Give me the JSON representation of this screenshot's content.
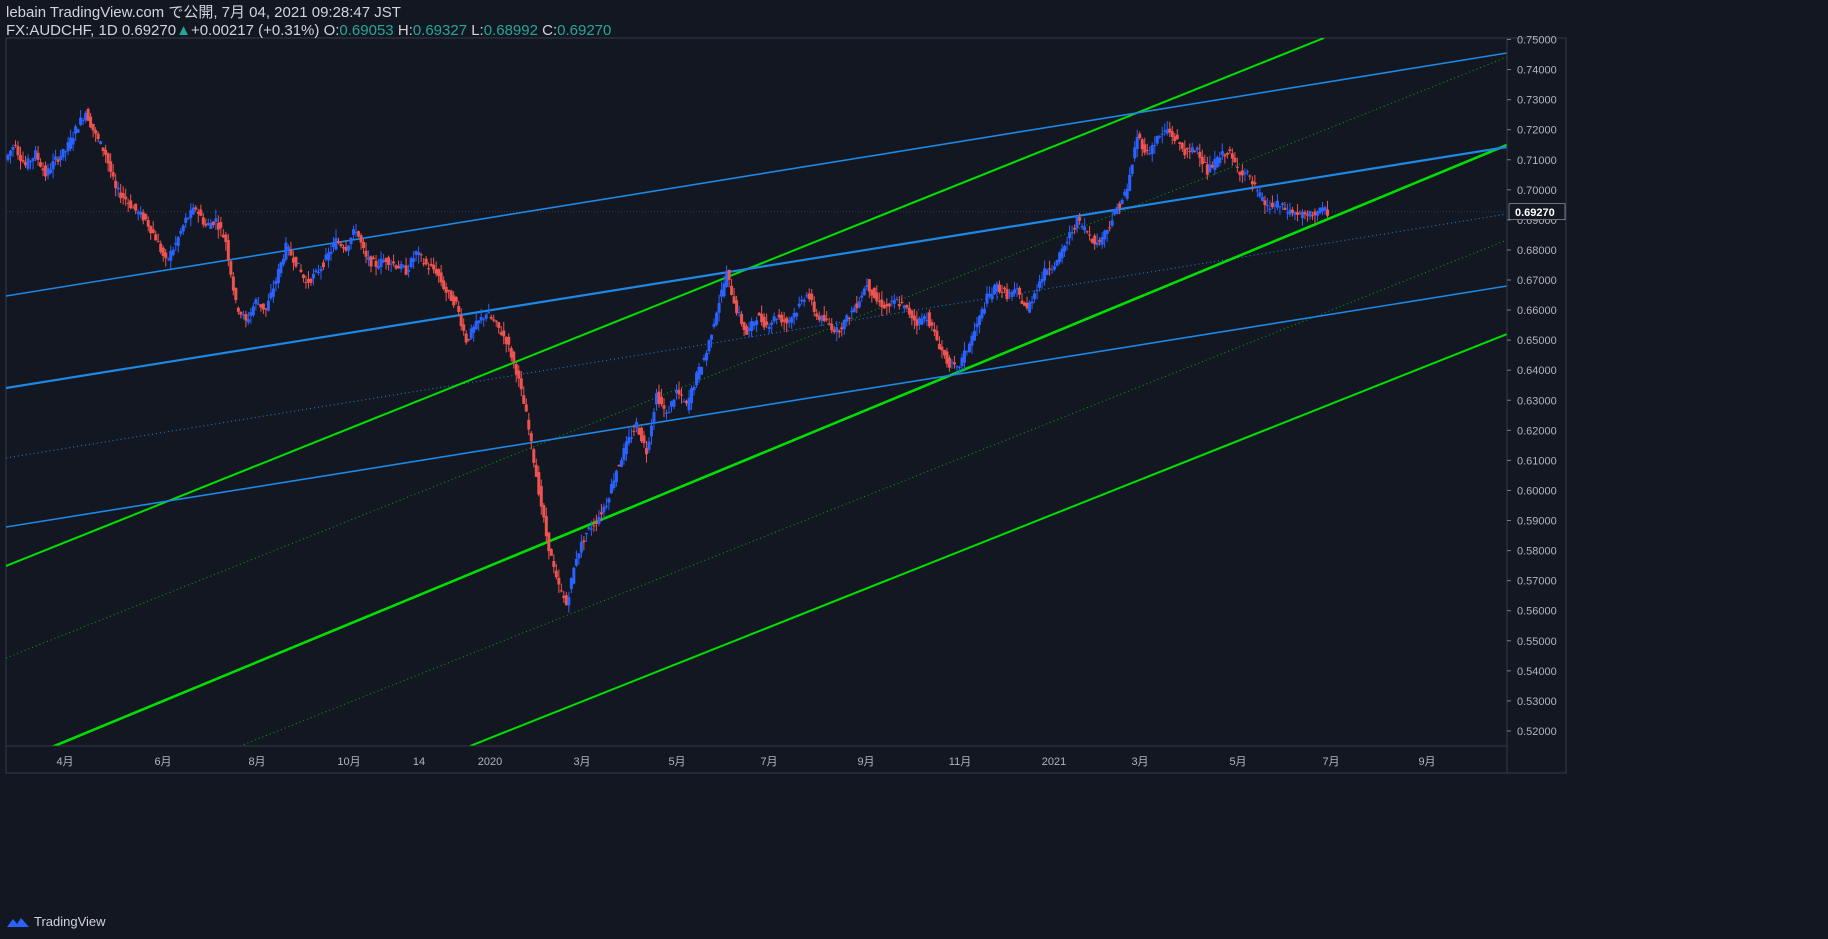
{
  "header": {
    "publish_line": "lebain TradingView.com で公開, 7月 04, 2021 09:28:47 JST",
    "symbol": "FX:AUDCHF, 1D",
    "last": "0.69270",
    "change_arrow": "▲",
    "change": "+0.00217 (+0.31%)",
    "o_label": "O:",
    "o_value": "0.69053",
    "h_label": "H:",
    "h_value": "0.69327",
    "l_label": "L:",
    "l_value": "0.68992",
    "c_label": "C:",
    "c_value": "0.69270"
  },
  "footer": {
    "brand": "TradingView",
    "logo_icon": "tradingview-logo-icon"
  },
  "colors": {
    "background": "#131722",
    "up": "#2962ff",
    "down": "#ef5350",
    "channel_green": "#00e000",
    "channel_blue": "#1e88e5",
    "text": "#d1d4dc",
    "accent_teal": "#26a69a"
  },
  "chart_data": {
    "type": "candlestick",
    "symbol": "FX:AUDCHF",
    "interval": "1D",
    "ylim": [
      0.515,
      0.7505
    ],
    "y_ticks": [
      "0.75000",
      "0.74000",
      "0.73000",
      "0.72000",
      "0.71000",
      "0.70000",
      "0.69000",
      "0.68000",
      "0.67000",
      "0.66000",
      "0.65000",
      "0.64000",
      "0.63000",
      "0.62000",
      "0.61000",
      "0.60000",
      "0.59000",
      "0.58000",
      "0.57000",
      "0.56000",
      "0.55000",
      "0.54000",
      "0.53000",
      "0.52000"
    ],
    "x_ticks": [
      "4月",
      "6月",
      "8月",
      "10月",
      "14",
      "2020",
      "3月",
      "5月",
      "7月",
      "9月",
      "11月",
      "2021",
      "3月",
      "5月",
      "7月",
      "9月"
    ],
    "last_price_label": "0.69270",
    "last_price": 0.6927,
    "price_path": [
      [
        0.71,
        0.716
      ],
      [
        0.714,
        0.708
      ],
      [
        0.708,
        0.712
      ],
      [
        0.712,
        0.705
      ],
      [
        0.705,
        0.71
      ],
      [
        0.71,
        0.713
      ],
      [
        0.713,
        0.72
      ],
      [
        0.72,
        0.726
      ],
      [
        0.726,
        0.718
      ],
      [
        0.718,
        0.712
      ],
      [
        0.712,
        0.7
      ],
      [
        0.7,
        0.697
      ],
      [
        0.697,
        0.693
      ],
      [
        0.693,
        0.69
      ],
      [
        0.69,
        0.684
      ],
      [
        0.684,
        0.676
      ],
      [
        0.676,
        0.682
      ],
      [
        0.682,
        0.69
      ],
      [
        0.69,
        0.694
      ],
      [
        0.694,
        0.688
      ],
      [
        0.688,
        0.69
      ],
      [
        0.69,
        0.683
      ],
      [
        0.683,
        0.662
      ],
      [
        0.662,
        0.656
      ],
      [
        0.656,
        0.663
      ],
      [
        0.663,
        0.66
      ],
      [
        0.66,
        0.67
      ],
      [
        0.67,
        0.681
      ],
      [
        0.681,
        0.676
      ],
      [
        0.676,
        0.669
      ],
      [
        0.669,
        0.672
      ],
      [
        0.672,
        0.677
      ],
      [
        0.677,
        0.683
      ],
      [
        0.683,
        0.681
      ],
      [
        0.681,
        0.687
      ],
      [
        0.687,
        0.677
      ],
      [
        0.677,
        0.675
      ],
      [
        0.675,
        0.677
      ],
      [
        0.677,
        0.675
      ],
      [
        0.675,
        0.673
      ],
      [
        0.673,
        0.679
      ],
      [
        0.679,
        0.675
      ],
      [
        0.675,
        0.673
      ],
      [
        0.673,
        0.666
      ],
      [
        0.666,
        0.662
      ],
      [
        0.662,
        0.65
      ],
      [
        0.65,
        0.655
      ],
      [
        0.655,
        0.659
      ],
      [
        0.659,
        0.655
      ],
      [
        0.655,
        0.65
      ],
      [
        0.65,
        0.64
      ],
      [
        0.64,
        0.625
      ],
      [
        0.625,
        0.605
      ],
      [
        0.605,
        0.585
      ],
      [
        0.585,
        0.57
      ],
      [
        0.57,
        0.562
      ],
      [
        0.562,
        0.578
      ],
      [
        0.578,
        0.586
      ],
      [
        0.586,
        0.59
      ],
      [
        0.59,
        0.596
      ],
      [
        0.596,
        0.607
      ],
      [
        0.607,
        0.615
      ],
      [
        0.615,
        0.622
      ],
      [
        0.622,
        0.613
      ],
      [
        0.613,
        0.632
      ],
      [
        0.632,
        0.625
      ],
      [
        0.625,
        0.633
      ],
      [
        0.633,
        0.628
      ],
      [
        0.628,
        0.638
      ],
      [
        0.638,
        0.646
      ],
      [
        0.646,
        0.66
      ],
      [
        0.66,
        0.672
      ],
      [
        0.672,
        0.66
      ],
      [
        0.66,
        0.652
      ],
      [
        0.652,
        0.658
      ],
      [
        0.658,
        0.655
      ],
      [
        0.655,
        0.658
      ],
      [
        0.658,
        0.656
      ],
      [
        0.656,
        0.66
      ],
      [
        0.66,
        0.666
      ],
      [
        0.666,
        0.658
      ],
      [
        0.658,
        0.656
      ],
      [
        0.656,
        0.653
      ],
      [
        0.653,
        0.657
      ],
      [
        0.657,
        0.662
      ],
      [
        0.662,
        0.669
      ],
      [
        0.669,
        0.663
      ],
      [
        0.663,
        0.661
      ],
      [
        0.661,
        0.663
      ],
      [
        0.663,
        0.66
      ],
      [
        0.66,
        0.656
      ],
      [
        0.656,
        0.658
      ],
      [
        0.658,
        0.65
      ],
      [
        0.65,
        0.643
      ],
      [
        0.643,
        0.64
      ],
      [
        0.64,
        0.647
      ],
      [
        0.647,
        0.655
      ],
      [
        0.655,
        0.664
      ],
      [
        0.664,
        0.668
      ],
      [
        0.668,
        0.665
      ],
      [
        0.665,
        0.666
      ],
      [
        0.666,
        0.66
      ],
      [
        0.66,
        0.668
      ],
      [
        0.668,
        0.674
      ],
      [
        0.674,
        0.676
      ],
      [
        0.676,
        0.683
      ],
      [
        0.683,
        0.69
      ],
      [
        0.69,
        0.686
      ],
      [
        0.686,
        0.682
      ],
      [
        0.682,
        0.687
      ],
      [
        0.687,
        0.694
      ],
      [
        0.694,
        0.7
      ],
      [
        0.7,
        0.718
      ],
      [
        0.718,
        0.712
      ],
      [
        0.712,
        0.717
      ],
      [
        0.717,
        0.72
      ],
      [
        0.72,
        0.716
      ],
      [
        0.716,
        0.712
      ],
      [
        0.712,
        0.714
      ],
      [
        0.714,
        0.706
      ],
      [
        0.706,
        0.71
      ],
      [
        0.71,
        0.713
      ],
      [
        0.713,
        0.707
      ],
      [
        0.707,
        0.705
      ],
      [
        0.705,
        0.699
      ],
      [
        0.699,
        0.694
      ],
      [
        0.694,
        0.695
      ],
      [
        0.695,
        0.693
      ],
      [
        0.693,
        0.692
      ],
      [
        0.692,
        0.691
      ],
      [
        0.691,
        0.693
      ],
      [
        0.693,
        0.6927
      ]
    ],
    "trend_channels": [
      {
        "color": "green",
        "style": "solid",
        "name": "green-channel-line-1"
      },
      {
        "color": "green",
        "style": "solid",
        "name": "green-channel-line-2"
      },
      {
        "color": "green",
        "style": "solid",
        "name": "green-channel-line-3"
      },
      {
        "color": "blue",
        "style": "solid",
        "name": "blue-channel-line-1"
      },
      {
        "color": "blue",
        "style": "solid",
        "name": "blue-channel-line-2"
      },
      {
        "color": "blue",
        "style": "solid",
        "name": "blue-channel-line-3"
      }
    ]
  }
}
